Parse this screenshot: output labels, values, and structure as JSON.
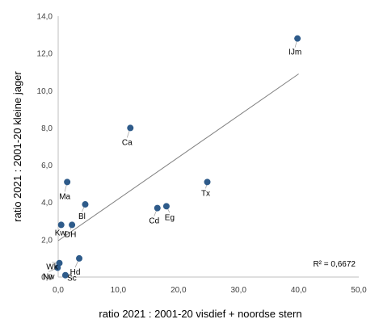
{
  "chart_data": {
    "type": "scatter",
    "title": "",
    "xlabel": "ratio 2021 : 2001-20 visdief + noordse stern",
    "ylabel": "ratio 2021 : 2001-20 kleine jager",
    "xlim": [
      0,
      50
    ],
    "ylim": [
      0,
      14
    ],
    "x_ticks": [
      "0,0",
      "10,0",
      "20,0",
      "30,0",
      "40,0",
      "50,0"
    ],
    "y_ticks": [
      "0,0",
      "2,0",
      "4,0",
      "6,0",
      "8,0",
      "10,0",
      "12,0",
      "14,0"
    ],
    "grid": false,
    "marker_color": "#2e5b8a",
    "trendline_color": "#808080",
    "points": [
      {
        "label": "IJm",
        "x": 39.8,
        "y": 12.8
      },
      {
        "label": "Ca",
        "x": 12.0,
        "y": 8.0
      },
      {
        "label": "Tx",
        "x": 24.8,
        "y": 5.1
      },
      {
        "label": "Ma",
        "x": 1.5,
        "y": 5.1
      },
      {
        "label": "Bl",
        "x": 4.5,
        "y": 3.9
      },
      {
        "label": "Eg",
        "x": 18.0,
        "y": 3.8
      },
      {
        "label": "Cd",
        "x": 16.5,
        "y": 3.7
      },
      {
        "label": "Kw",
        "x": 0.5,
        "y": 2.8
      },
      {
        "label": "DH",
        "x": 2.3,
        "y": 2.8
      },
      {
        "label": "Hd",
        "x": 3.5,
        "y": 1.0
      },
      {
        "label": "Wk",
        "x": 0.2,
        "y": 0.75
      },
      {
        "label": "Nw",
        "x": -0.1,
        "y": 0.5
      },
      {
        "label": "Sc",
        "x": 1.2,
        "y": 0.1
      }
    ],
    "trendline": {
      "x": [
        0,
        40
      ],
      "y": [
        1.95,
        10.9
      ]
    },
    "annotation": "R² = 0,6672"
  }
}
